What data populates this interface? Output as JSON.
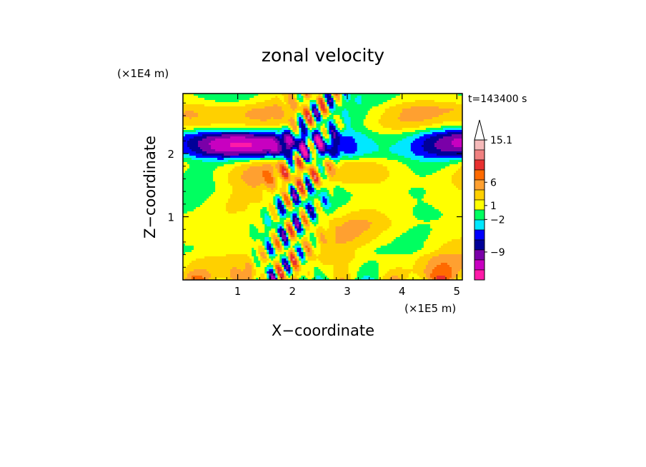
{
  "chart_data": {
    "type": "heatmap",
    "title": "zonal velocity",
    "xlabel": "X−coordinate",
    "ylabel": "Z−coordinate",
    "x_unit": "(×1E5 m)",
    "y_unit": "(×1E4 m)",
    "time_label": "t=143400 s",
    "xlim": [
      0,
      5.1
    ],
    "ylim": [
      0,
      2.95
    ],
    "x_ticks": [
      "1",
      "2",
      "3",
      "4",
      "5"
    ],
    "x_tick_values": [
      1,
      2,
      3,
      4,
      5
    ],
    "y_ticks": [
      "1",
      "2"
    ],
    "y_tick_values": [
      1,
      2
    ],
    "grid": false,
    "colorbar": {
      "labels": [
        "15.1",
        "6",
        "1",
        "−2",
        "−9"
      ],
      "label_values": [
        15.1,
        6,
        1,
        -2,
        -9
      ],
      "range": [
        -15,
        15.1
      ],
      "extend": "max",
      "levels": [
        {
          "color": "#f5b9b9"
        },
        {
          "color": "#f08080"
        },
        {
          "color": "#e83030"
        },
        {
          "color": "#ff6a00"
        },
        {
          "color": "#ffa030"
        },
        {
          "color": "#ffd000"
        },
        {
          "color": "#ffff00"
        },
        {
          "color": "#00ff60"
        },
        {
          "color": "#00e8ff"
        },
        {
          "color": "#0000ff"
        },
        {
          "color": "#000098"
        },
        {
          "color": "#7a00a8"
        },
        {
          "color": "#c800c0"
        },
        {
          "color": "#ff1aa8"
        }
      ]
    },
    "field_bands": [
      {
        "z": 2.55,
        "u": 4.0
      },
      {
        "z": 2.15,
        "u": -12.0
      },
      {
        "z": 1.72,
        "u": 5.0
      },
      {
        "z": 1.3,
        "u": 0.0
      },
      {
        "z": 0.75,
        "u": 2.0
      },
      {
        "z": 0.2,
        "u": 3.0
      }
    ]
  }
}
